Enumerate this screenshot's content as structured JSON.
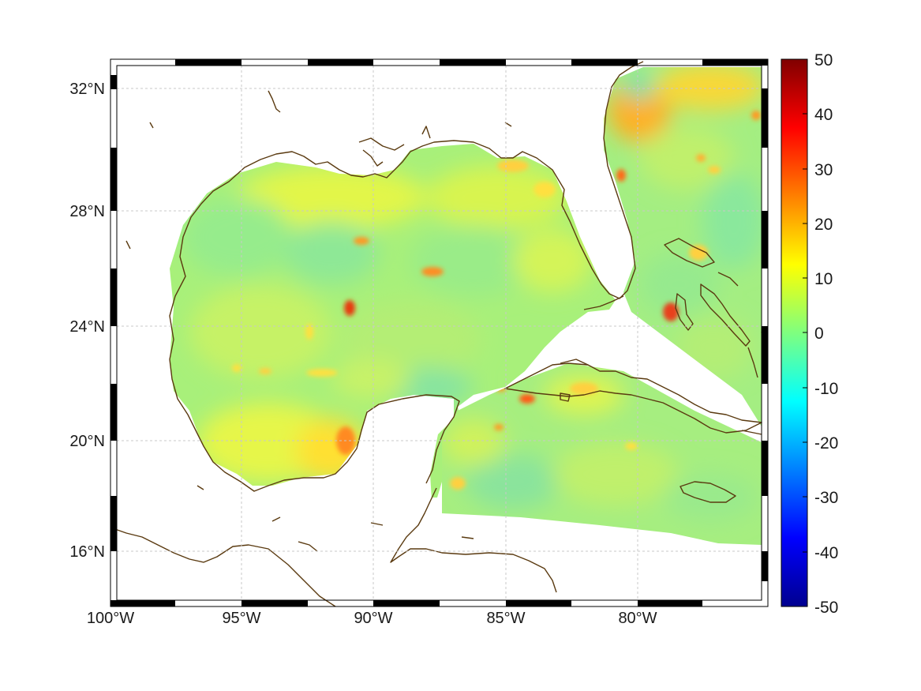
{
  "map": {
    "lon_range": [
      -100,
      -75
    ],
    "lat_range": [
      14.2,
      33
    ]
  },
  "axes": {
    "lon_ticks": [
      {
        "value": -100,
        "label": "100°W"
      },
      {
        "value": -95,
        "label": "95°W"
      },
      {
        "value": -90,
        "label": "90°W"
      },
      {
        "value": -85,
        "label": "85°W"
      },
      {
        "value": -80,
        "label": "80°W"
      }
    ],
    "lat_ticks": [
      {
        "value": 32,
        "label": "32°N"
      },
      {
        "value": 28,
        "label": "28°N"
      },
      {
        "value": 24,
        "label": "24°N"
      },
      {
        "value": 20,
        "label": "20°N"
      },
      {
        "value": 16,
        "label": "16°N"
      }
    ],
    "grid": true
  },
  "colorbar": {
    "colormap": "jet",
    "range": [
      -50,
      50
    ],
    "tick_labels": [
      "50",
      "40",
      "30",
      "20",
      "10",
      "0",
      "-10",
      "-20",
      "-30",
      "-40",
      "-50"
    ]
  },
  "colors": {
    "coastline": "#5a3a10",
    "field_base": "#b8f060",
    "high_spots": "#ff3c10"
  }
}
